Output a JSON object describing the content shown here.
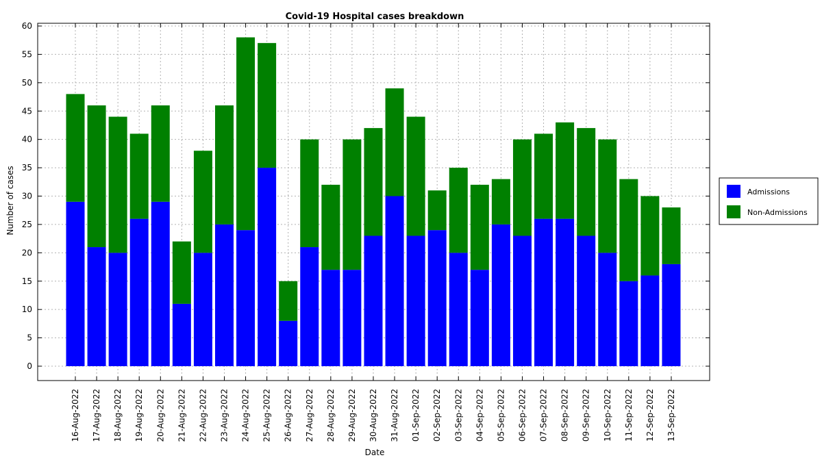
{
  "chart_data": {
    "type": "bar",
    "stacked": true,
    "title": "Covid-19 Hospital cases breakdown",
    "xlabel": "Date",
    "ylabel": "Number of cases",
    "ylim": [
      -2.5,
      61
    ],
    "yticks": [
      0,
      5,
      10,
      15,
      20,
      25,
      30,
      35,
      40,
      45,
      50,
      55,
      60
    ],
    "grid": true,
    "legend_position": "right",
    "categories": [
      "16-Aug-2022",
      "17-Aug-2022",
      "18-Aug-2022",
      "19-Aug-2022",
      "20-Aug-2022",
      "21-Aug-2022",
      "22-Aug-2022",
      "23-Aug-2022",
      "24-Aug-2022",
      "25-Aug-2022",
      "26-Aug-2022",
      "27-Aug-2022",
      "28-Aug-2022",
      "29-Aug-2022",
      "30-Aug-2022",
      "31-Aug-2022",
      "01-Sep-2022",
      "02-Sep-2022",
      "03-Sep-2022",
      "04-Sep-2022",
      "05-Sep-2022",
      "06-Sep-2022",
      "07-Sep-2022",
      "08-Sep-2022",
      "09-Sep-2022",
      "10-Sep-2022",
      "11-Sep-2022",
      "12-Sep-2022",
      "13-Sep-2022"
    ],
    "series": [
      {
        "name": "Admissions",
        "color": "#0000ff",
        "values": [
          29,
          21,
          20,
          26,
          29,
          11,
          20,
          25,
          24,
          35,
          8,
          21,
          17,
          17,
          23,
          30,
          23,
          24,
          20,
          17,
          25,
          23,
          26,
          26,
          23,
          20,
          15,
          16,
          18
        ]
      },
      {
        "name": "Non-Admissions",
        "color": "#008000",
        "values": [
          19,
          25,
          24,
          15,
          17,
          11,
          18,
          21,
          34,
          22,
          7,
          19,
          15,
          23,
          19,
          19,
          21,
          7,
          15,
          15,
          8,
          17,
          15,
          17,
          19,
          20,
          18,
          14,
          10
        ]
      }
    ]
  }
}
